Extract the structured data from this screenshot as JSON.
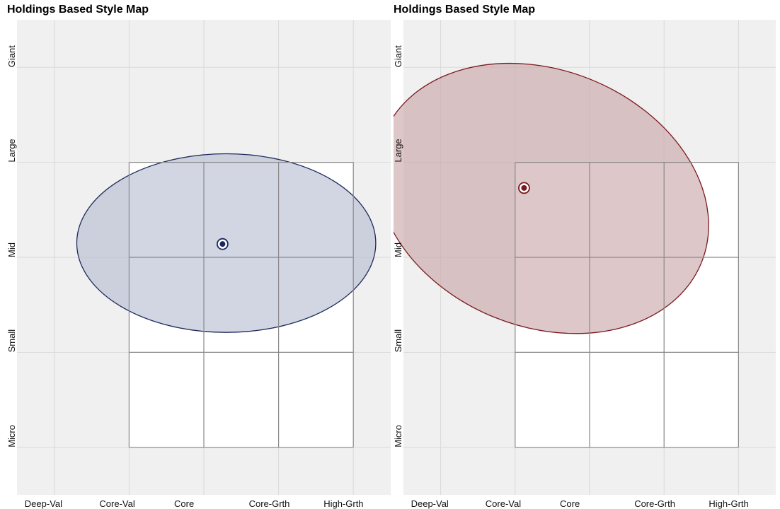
{
  "chart_data": [
    {
      "type": "scatter",
      "title": "Holdings Based Style Map",
      "x_ticks": [
        "Deep-Val",
        "Core-Val",
        "Core",
        "Core-Grth",
        "High-Grth"
      ],
      "y_ticks": [
        "Giant",
        "Large",
        "Mid",
        "Small",
        "Micro"
      ],
      "colors": {
        "ellipse_fill": "#b5bdd0",
        "ellipse_stroke": "#1f2a5c",
        "centroid": "#1a2660",
        "background": "#f0f0f0",
        "box_fill": "#ffffff"
      },
      "style_box": {
        "x": [
          1,
          4
        ],
        "y": [
          1,
          4
        ]
      },
      "centroid": {
        "x": 2.25,
        "y": 1.86
      },
      "ellipse": {
        "cx": 2.3,
        "cy": 1.85,
        "rx": 2.0,
        "ry": 0.94,
        "rotation": 0
      }
    },
    {
      "type": "scatter",
      "title": "Holdings Based Style Map",
      "x_ticks": [
        "Deep-Val",
        "Core-Val",
        "Core",
        "Core-Grth",
        "High-Grth"
      ],
      "y_ticks": [
        "Giant",
        "Large",
        "Mid",
        "Small",
        "Micro"
      ],
      "colors": {
        "ellipse_fill": "#c9a4a6",
        "ellipse_stroke": "#7a1a1f",
        "centroid": "#7a1a1f",
        "background": "#f0f0f0",
        "box_fill": "#ffffff"
      },
      "style_box": {
        "x": [
          1,
          4
        ],
        "y": [
          1,
          4
        ]
      },
      "centroid": {
        "x": 1.12,
        "y": 1.27
      },
      "ellipse": {
        "cx": 1.37,
        "cy": 1.38,
        "rx": 2.3,
        "ry": 1.35,
        "rotation": 22
      }
    }
  ]
}
